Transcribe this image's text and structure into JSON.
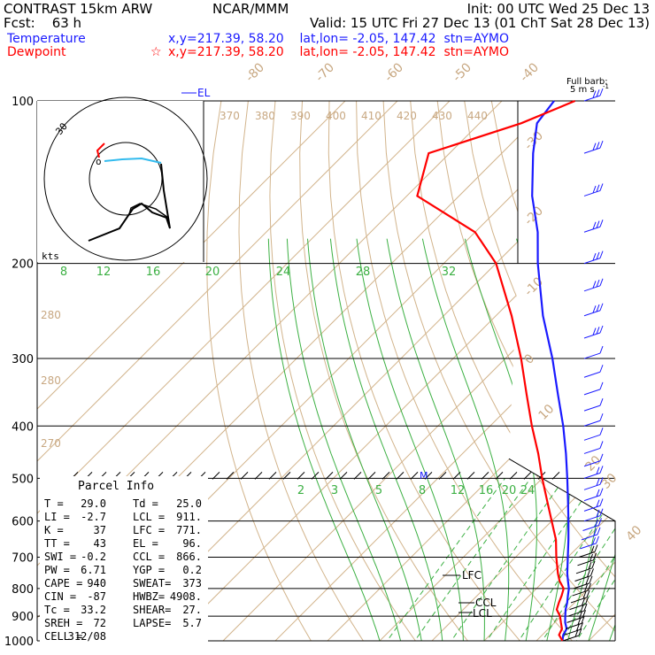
{
  "header": {
    "left1": "CONTRAST 15km ARW",
    "center1": "NCAR/MMM",
    "init": "Init: 00 UTC Wed 25 Dec 13",
    "fcst": "Fcst:    63 h",
    "valid": "Valid: 15 UTC Fri 27 Dec 13 (01 ChT Sat 28 Dec 13)",
    "temp_label": "Temperature",
    "temp_info": "x,y=217.39, 58.20    lat,lon= -2.05, 147.42  stn=AYMO",
    "dew_label": "Dewpoint",
    "dew_info": "x,y=217.39, 58.20    lat,lon= -2.05, 147.42  stn=AYMO",
    "temp_color": "#1a1aff",
    "dew_color": "#ff0000"
  },
  "full_barb": {
    "line1": "Full barb:",
    "line2": "5 m s"
  },
  "hodograph": {
    "units": "kts",
    "ring_label": "30"
  },
  "parcel_info": {
    "title": "Parcel Info",
    "rows": [
      [
        "T   =",
        "29.0",
        "Td =",
        "25.0"
      ],
      [
        "LI  =",
        "-2.7",
        "LCL =",
        "911."
      ],
      [
        "K   =",
        "37",
        "LFC =",
        "771."
      ],
      [
        "TT  =",
        "43",
        "EL  =",
        "96."
      ],
      [
        "SWI =",
        "-0.2",
        "CCL =",
        "866."
      ],
      [
        "PW  =",
        "6.71",
        "YGP =",
        "0.2"
      ],
      [
        "CAPE =",
        "940",
        "SWEAT=",
        "373"
      ],
      [
        "CIN  =",
        "-87",
        "HWBZ=",
        "4908."
      ],
      [
        "Tc  =",
        "33.2",
        "SHEAR=",
        "27."
      ],
      [
        "SREH =",
        "72",
        "LAPSE=",
        "5.7"
      ],
      [
        "CELL =",
        "312/08",
        "",
        ""
      ]
    ]
  },
  "markers": {
    "el": "EL",
    "lfc": "LFC",
    "ccl": "CCL",
    "lcl": "LCL",
    "m": "M"
  },
  "chart_data": {
    "type": "line",
    "title": "",
    "ylabel": "",
    "xlabel": "",
    "pressure_levels": [
      100,
      200,
      300,
      400,
      500,
      600,
      700,
      800,
      900,
      1000
    ],
    "temp_ticks": [
      -80,
      -70,
      -60,
      -50,
      -40,
      -30,
      -20,
      -10,
      0,
      10,
      20,
      30,
      40
    ],
    "theta_labels": [
      370,
      380,
      390,
      400,
      410,
      420,
      430,
      440
    ],
    "mixing_ratio_upper": [
      8,
      12,
      16,
      20,
      24,
      28,
      32
    ],
    "mixing_ratio_lower": [
      2,
      3,
      5,
      8,
      12,
      16,
      20,
      24
    ],
    "side_theta_labels": [
      280,
      280,
      270
    ],
    "series": [
      {
        "name": "Temperature",
        "color": "#1a1aff",
        "points": [
          [
            1000,
            25.0
          ],
          [
            975,
            24.0
          ],
          [
            950,
            23.5
          ],
          [
            925,
            22.0
          ],
          [
            900,
            20.8
          ],
          [
            875,
            19.6
          ],
          [
            850,
            18.6
          ],
          [
            825,
            17.4
          ],
          [
            800,
            16.2
          ],
          [
            775,
            14.6
          ],
          [
            750,
            13.0
          ],
          [
            700,
            10.0
          ],
          [
            650,
            6.8
          ],
          [
            600,
            3.2
          ],
          [
            550,
            -0.8
          ],
          [
            500,
            -5.2
          ],
          [
            450,
            -10.2
          ],
          [
            400,
            -16.0
          ],
          [
            350,
            -23.0
          ],
          [
            300,
            -31.0
          ],
          [
            250,
            -41.0
          ],
          [
            200,
            -52.0
          ],
          [
            175,
            -58.0
          ],
          [
            150,
            -66.0
          ],
          [
            125,
            -74.0
          ],
          [
            110,
            -79.0
          ],
          [
            100,
            -80.0
          ]
        ]
      },
      {
        "name": "Dewpoint",
        "color": "#ff0000",
        "points": [
          [
            1000,
            25.0
          ],
          [
            975,
            23.2
          ],
          [
            950,
            22.6
          ],
          [
            925,
            21.2
          ],
          [
            900,
            19.8
          ],
          [
            875,
            17.9
          ],
          [
            850,
            17.0
          ],
          [
            825,
            16.2
          ],
          [
            800,
            15.2
          ],
          [
            775,
            13.0
          ],
          [
            750,
            11.2
          ],
          [
            700,
            7.8
          ],
          [
            650,
            4.4
          ],
          [
            600,
            0.0
          ],
          [
            550,
            -4.8
          ],
          [
            500,
            -10.0
          ],
          [
            450,
            -15.5
          ],
          [
            400,
            -22.0
          ],
          [
            350,
            -29.0
          ],
          [
            300,
            -37.0
          ],
          [
            250,
            -47.0
          ],
          [
            200,
            -60.0
          ],
          [
            175,
            -70.0
          ],
          [
            150,
            -88.0
          ],
          [
            125,
            -94.0
          ],
          [
            110,
            -82.0
          ],
          [
            100,
            -76.0
          ]
        ]
      }
    ]
  }
}
